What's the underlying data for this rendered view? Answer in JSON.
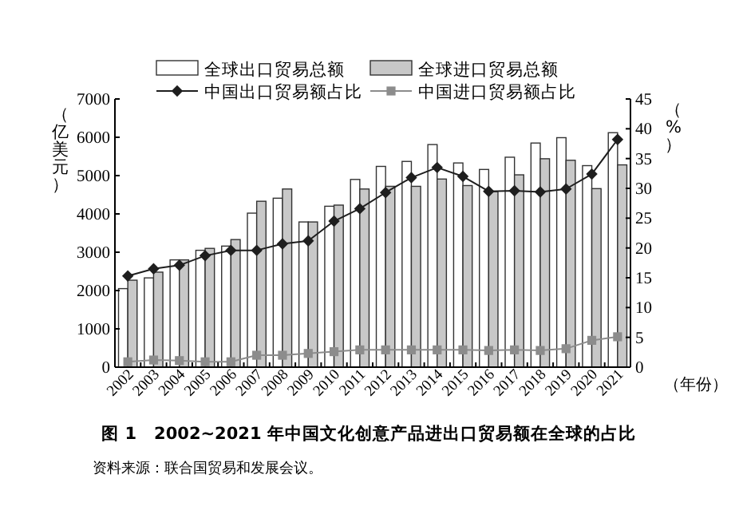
{
  "chart_data": {
    "type": "bar",
    "title": "图 1　2002~2021 年中国文化创意产品进出口贸易额在全球的占比",
    "annotations": [
      "资料来源：联合国贸易和发展会议。"
    ],
    "xlabel": "（年份）",
    "ylabel": "（亿美元）",
    "y2label": "（%）",
    "categories": [
      "2002",
      "2003",
      "2004",
      "2005",
      "2006",
      "2007",
      "2008",
      "2009",
      "2010",
      "2011",
      "2012",
      "2013",
      "2014",
      "2015",
      "2016",
      "2017",
      "2018",
      "2019",
      "2020",
      "2021"
    ],
    "ylim": [
      0,
      7000
    ],
    "yticks": [
      0,
      1000,
      2000,
      3000,
      4000,
      5000,
      6000,
      7000
    ],
    "y2lim": [
      0,
      45
    ],
    "y2ticks": [
      0,
      5,
      10,
      15,
      20,
      25,
      30,
      35,
      40,
      45
    ],
    "legend": "top",
    "series": [
      {
        "name": "全球出口贸易总额",
        "color": "#ffffff",
        "values": [
          2050,
          2330,
          2800,
          3050,
          3160,
          4020,
          4410,
          3790,
          4200,
          4900,
          5240,
          5370,
          5810,
          5330,
          5160,
          5480,
          5850,
          5990,
          5260,
          6120
        ]
      },
      {
        "name": "全球进口贸易总额",
        "color": "#c8c8c8",
        "values": [
          2270,
          2480,
          2800,
          3100,
          3330,
          4330,
          4650,
          3790,
          4230,
          4650,
          4720,
          4720,
          4910,
          4740,
          4580,
          5020,
          5440,
          5400,
          4660,
          5280
        ]
      },
      {
        "name": "中国出口贸易额占比",
        "type": "line",
        "axis": "y2",
        "color": "#1e1e1e",
        "marker": "diamond",
        "values": [
          15.3,
          16.5,
          17.1,
          18.7,
          19.6,
          19.6,
          20.7,
          21.2,
          24.5,
          26.6,
          29.3,
          31.8,
          33.5,
          32.0,
          29.5,
          29.6,
          29.4,
          29.9,
          32.4,
          38.2
        ]
      },
      {
        "name": "中国进口贸易额占比",
        "type": "line",
        "axis": "y2",
        "color": "#8c8c8c",
        "marker": "square",
        "values": [
          0.9,
          1.2,
          1.1,
          0.9,
          0.9,
          2.0,
          2.0,
          2.3,
          2.6,
          2.9,
          2.9,
          2.9,
          2.9,
          2.9,
          2.8,
          2.9,
          2.8,
          3.1,
          4.5,
          5.1
        ]
      }
    ]
  }
}
